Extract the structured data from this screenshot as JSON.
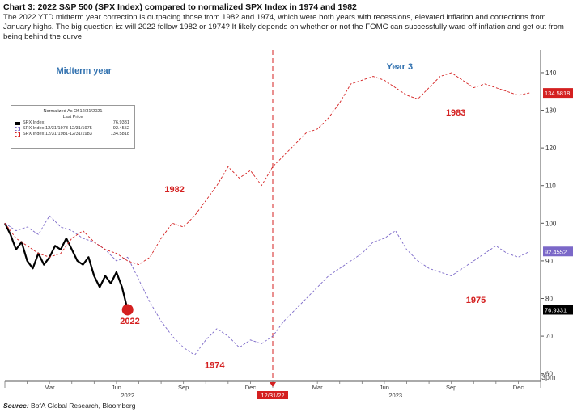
{
  "header": {
    "title": "Chart 3: 2022 S&P 500 (SPX Index) compared to normalized SPX Index in 1974 and 1982",
    "description": "The 2022 YTD midterm year correction is outpacing those from 1982 and 1974, which were both years with recessions, elevated inflation and corrections from January highs. The big question is: will 2022 follow 1982 or 1974? It likely depends on whether or not the FOMC can successfully ward off inflation and get out from being behind the curve."
  },
  "source": {
    "label": "Source:",
    "text": "BofA Global Research, Bloomberg"
  },
  "legend": {
    "header_line1": "Normalized As Of 12/31/2021",
    "header_line2": "Last Price",
    "items": [
      {
        "name": "SPX Index",
        "value": "76.9331",
        "color": "#000000"
      },
      {
        "name": "SPX Index 12/31/1973-12/31/1975",
        "value": "92.4552",
        "color": "#7b68c8"
      },
      {
        "name": "SPX Index 12/31/1981-12/31/1983",
        "value": "134.5818",
        "color": "#d42020"
      }
    ]
  },
  "chart_data": {
    "type": "line",
    "x_unit": "month index (0 = 12/31/2021, 12 = 12/31/2022, 24 = 12/31/2023)",
    "xlim": [
      0,
      24
    ],
    "ylim": [
      58,
      146
    ],
    "y_ticks": [
      60,
      70,
      80,
      90,
      100,
      110,
      120,
      130,
      140
    ],
    "x_ticks": [
      {
        "x": 2,
        "label": "Mar"
      },
      {
        "x": 5,
        "label": "Jun"
      },
      {
        "x": 8,
        "label": "Sep"
      },
      {
        "x": 11,
        "label": "Dec"
      },
      {
        "x": 14,
        "label": "Mar"
      },
      {
        "x": 17,
        "label": "Jun"
      },
      {
        "x": 20,
        "label": "Sep"
      },
      {
        "x": 23,
        "label": "Dec"
      }
    ],
    "year_labels": [
      {
        "x": 5.5,
        "label": "2022"
      },
      {
        "x": 17.5,
        "label": "2023"
      }
    ],
    "axis_suffix": "3pm",
    "divider": {
      "x": 12,
      "label": "12/31/22"
    },
    "region_labels": [
      "Midterm year",
      "Year 3"
    ],
    "series": [
      {
        "name": "SPX Index",
        "color": "#000000",
        "style": "solid",
        "end_label": "76.9331",
        "callout": "2022",
        "points": [
          [
            0,
            100
          ],
          [
            0.25,
            97
          ],
          [
            0.5,
            93
          ],
          [
            0.75,
            95
          ],
          [
            1,
            90
          ],
          [
            1.25,
            88
          ],
          [
            1.5,
            92
          ],
          [
            1.75,
            89
          ],
          [
            2,
            91
          ],
          [
            2.25,
            94
          ],
          [
            2.5,
            93
          ],
          [
            2.75,
            96
          ],
          [
            3,
            93
          ],
          [
            3.25,
            90
          ],
          [
            3.5,
            89
          ],
          [
            3.75,
            91
          ],
          [
            4,
            86
          ],
          [
            4.25,
            83
          ],
          [
            4.5,
            86
          ],
          [
            4.75,
            84
          ],
          [
            5,
            87
          ],
          [
            5.25,
            83
          ],
          [
            5.5,
            77
          ]
        ]
      },
      {
        "name": "SPX Index 12/31/1973-12/31/1975",
        "color": "#7b68c8",
        "style": "dashed",
        "end_label": "92.4552",
        "callout": "1974",
        "points": [
          [
            0,
            100
          ],
          [
            0.5,
            98
          ],
          [
            1,
            99
          ],
          [
            1.5,
            97
          ],
          [
            2,
            102
          ],
          [
            2.5,
            99
          ],
          [
            3,
            98
          ],
          [
            3.5,
            96
          ],
          [
            4,
            95
          ],
          [
            4.5,
            93
          ],
          [
            5,
            90
          ],
          [
            5.5,
            91
          ],
          [
            6,
            85
          ],
          [
            6.5,
            79
          ],
          [
            7,
            74
          ],
          [
            7.5,
            70
          ],
          [
            8,
            67
          ],
          [
            8.5,
            65
          ],
          [
            9,
            69
          ],
          [
            9.5,
            72
          ],
          [
            10,
            70
          ],
          [
            10.5,
            67
          ],
          [
            11,
            69
          ],
          [
            11.5,
            68
          ],
          [
            12,
            70
          ],
          [
            12.5,
            74
          ],
          [
            13,
            77
          ],
          [
            13.5,
            80
          ],
          [
            14,
            83
          ],
          [
            14.5,
            86
          ],
          [
            15,
            88
          ],
          [
            15.5,
            90
          ],
          [
            16,
            92
          ],
          [
            16.5,
            95
          ],
          [
            17,
            96
          ],
          [
            17.5,
            98
          ],
          [
            18,
            93
          ],
          [
            18.5,
            90
          ],
          [
            19,
            88
          ],
          [
            19.5,
            87
          ],
          [
            20,
            86
          ],
          [
            20.5,
            88
          ],
          [
            21,
            90
          ],
          [
            21.5,
            92
          ],
          [
            22,
            94
          ],
          [
            22.5,
            92
          ],
          [
            23,
            91
          ],
          [
            23.5,
            92.5
          ]
        ]
      },
      {
        "name": "SPX Index 12/31/1981-12/31/1983",
        "color": "#d42020",
        "style": "dashed",
        "end_label": "134.5818",
        "callout": "1982",
        "callout2": "1983",
        "points": [
          [
            0,
            100
          ],
          [
            0.5,
            96
          ],
          [
            1,
            94
          ],
          [
            1.5,
            92
          ],
          [
            2,
            91
          ],
          [
            2.5,
            92
          ],
          [
            3,
            96
          ],
          [
            3.5,
            98
          ],
          [
            4,
            95
          ],
          [
            4.5,
            93
          ],
          [
            5,
            92
          ],
          [
            5.5,
            90
          ],
          [
            6,
            89
          ],
          [
            6.5,
            91
          ],
          [
            7,
            96
          ],
          [
            7.5,
            100
          ],
          [
            8,
            99
          ],
          [
            8.5,
            102
          ],
          [
            9,
            106
          ],
          [
            9.5,
            110
          ],
          [
            10,
            115
          ],
          [
            10.5,
            112
          ],
          [
            11,
            114
          ],
          [
            11.5,
            110
          ],
          [
            12,
            115
          ],
          [
            12.5,
            118
          ],
          [
            13,
            121
          ],
          [
            13.5,
            124
          ],
          [
            14,
            125
          ],
          [
            14.5,
            128
          ],
          [
            15,
            132
          ],
          [
            15.5,
            137
          ],
          [
            16,
            138
          ],
          [
            16.5,
            139
          ],
          [
            17,
            138
          ],
          [
            17.5,
            136
          ],
          [
            18,
            134
          ],
          [
            18.5,
            133
          ],
          [
            19,
            136
          ],
          [
            19.5,
            139
          ],
          [
            20,
            140
          ],
          [
            20.5,
            138
          ],
          [
            21,
            136
          ],
          [
            21.5,
            137
          ],
          [
            22,
            136
          ],
          [
            22.5,
            135
          ],
          [
            23,
            134
          ],
          [
            23.5,
            134.6
          ]
        ]
      }
    ]
  }
}
